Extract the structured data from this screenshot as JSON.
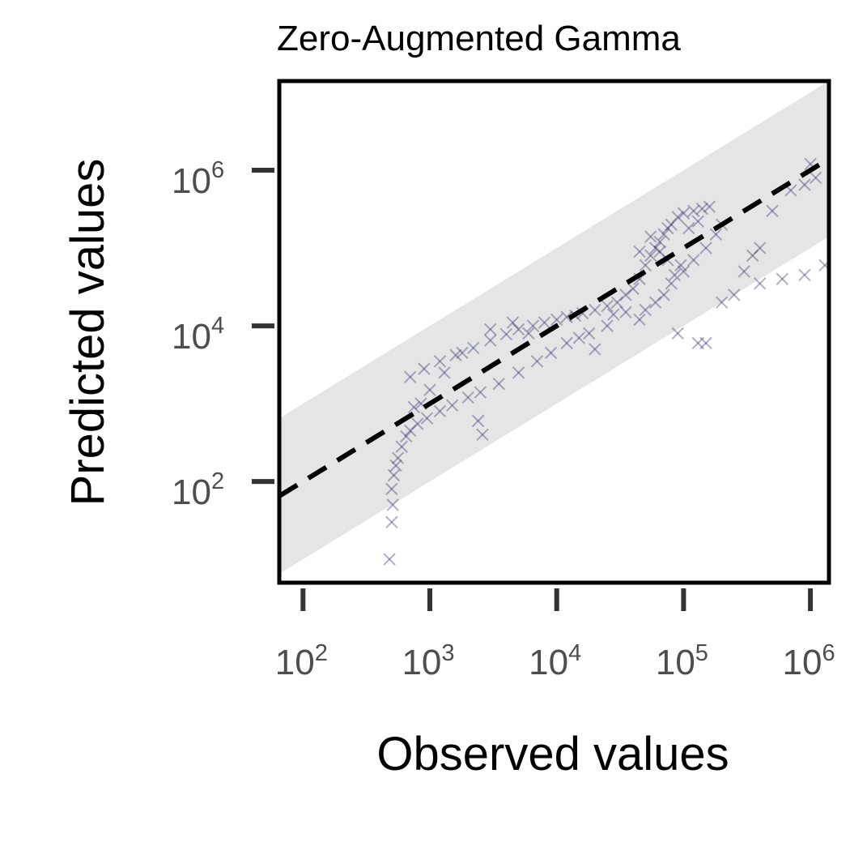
{
  "chart_data": {
    "type": "scatter",
    "title": "Zero-Augmented Gamma",
    "xlabel": "Observed values",
    "ylabel": "Predicted values",
    "x_scale": "log10",
    "y_scale": "log10",
    "xlim": [
      65,
      1400000
    ],
    "ylim": [
      5,
      14000000
    ],
    "grid": false,
    "legend": "none",
    "x_ticks": [
      {
        "value": 100,
        "base": "10",
        "exp": "2"
      },
      {
        "value": 1000,
        "base": "10",
        "exp": "3"
      },
      {
        "value": 10000,
        "base": "10",
        "exp": "4"
      },
      {
        "value": 100000,
        "base": "10",
        "exp": "5"
      },
      {
        "value": 1000000,
        "base": "10",
        "exp": "6"
      }
    ],
    "y_ticks": [
      {
        "value": 100,
        "base": "10",
        "exp": "2"
      },
      {
        "value": 10000,
        "base": "10",
        "exp": "4"
      },
      {
        "value": 1000000,
        "base": "10",
        "exp": "6"
      }
    ],
    "reference_line": {
      "style": "dashed",
      "color": "#000000",
      "points": [
        [
          65,
          65
        ],
        [
          1400000,
          1400000
        ]
      ]
    },
    "band": {
      "color": "#e5e5e5",
      "lower_factor": 0.1,
      "upper_factor": 10
    },
    "series": [
      {
        "marker": "x",
        "color": "#1f2060",
        "points": [
          [
            480,
            10
          ],
          [
            500,
            30
          ],
          [
            510,
            50
          ],
          [
            500,
            80
          ],
          [
            520,
            120
          ],
          [
            540,
            160
          ],
          [
            560,
            200
          ],
          [
            600,
            280
          ],
          [
            650,
            380
          ],
          [
            700,
            450
          ],
          [
            800,
            550
          ],
          [
            950,
            650
          ],
          [
            1200,
            800
          ],
          [
            1500,
            950
          ],
          [
            2000,
            1200
          ],
          [
            2500,
            1400
          ],
          [
            2600,
            400
          ],
          [
            2400,
            600
          ],
          [
            700,
            2200
          ],
          [
            900,
            2800
          ],
          [
            1200,
            3500
          ],
          [
            1600,
            4200
          ],
          [
            2200,
            5200
          ],
          [
            3000,
            6500
          ],
          [
            4000,
            7800
          ],
          [
            5000,
            9000
          ],
          [
            6500,
            10000
          ],
          [
            8000,
            11000
          ],
          [
            10000,
            12000
          ],
          [
            12000,
            13000
          ],
          [
            14000,
            13500
          ],
          [
            16000,
            14500
          ],
          [
            20000,
            16000
          ],
          [
            25000,
            18000
          ],
          [
            30000,
            20000
          ],
          [
            3500,
            1800
          ],
          [
            5000,
            2500
          ],
          [
            7000,
            3500
          ],
          [
            9000,
            4500
          ],
          [
            12000,
            6000
          ],
          [
            15000,
            7000
          ],
          [
            18000,
            8000
          ],
          [
            25000,
            10000
          ],
          [
            20000,
            5000
          ],
          [
            35000,
            25000
          ],
          [
            40000,
            30000
          ],
          [
            45000,
            40000
          ],
          [
            50000,
            60000
          ],
          [
            55000,
            80000
          ],
          [
            60000,
            100000
          ],
          [
            65000,
            120000
          ],
          [
            70000,
            150000
          ],
          [
            75000,
            180000
          ],
          [
            80000,
            200000
          ],
          [
            90000,
            250000
          ],
          [
            100000,
            280000
          ],
          [
            120000,
            300000
          ],
          [
            140000,
            320000
          ],
          [
            160000,
            340000
          ],
          [
            45000,
            12000
          ],
          [
            50000,
            16000
          ],
          [
            60000,
            20000
          ],
          [
            70000,
            25000
          ],
          [
            80000,
            35000
          ],
          [
            100000,
            50000
          ],
          [
            120000,
            70000
          ],
          [
            150000,
            100000
          ],
          [
            180000,
            150000
          ],
          [
            200000,
            200000
          ],
          [
            90000,
            8000
          ],
          [
            130000,
            6000
          ],
          [
            200000,
            20000
          ],
          [
            300000,
            50000
          ],
          [
            400000,
            100000
          ],
          [
            500000,
            300000
          ],
          [
            700000,
            550000
          ],
          [
            900000,
            650000
          ],
          [
            1100000,
            800000
          ],
          [
            1000000,
            1200000
          ],
          [
            400000,
            35000
          ],
          [
            600000,
            40000
          ],
          [
            900000,
            45000
          ],
          [
            1300000,
            60000
          ],
          [
            150000,
            6000
          ],
          [
            250000,
            25000
          ],
          [
            350000,
            80000
          ],
          [
            45000,
            90000
          ],
          [
            55000,
            140000
          ],
          [
            65000,
            90000
          ],
          [
            75000,
            70000
          ],
          [
            110000,
            180000
          ],
          [
            130000,
            220000
          ],
          [
            85000,
            45000
          ],
          [
            95000,
            60000
          ],
          [
            35000,
            15000
          ],
          [
            28000,
            14000
          ],
          [
            3000,
            9000
          ],
          [
            4500,
            11000
          ],
          [
            6000,
            8000
          ],
          [
            1800,
            4500
          ],
          [
            1300,
            2500
          ],
          [
            1000,
            1500
          ],
          [
            850,
            1000
          ],
          [
            750,
            900
          ]
        ]
      }
    ]
  }
}
